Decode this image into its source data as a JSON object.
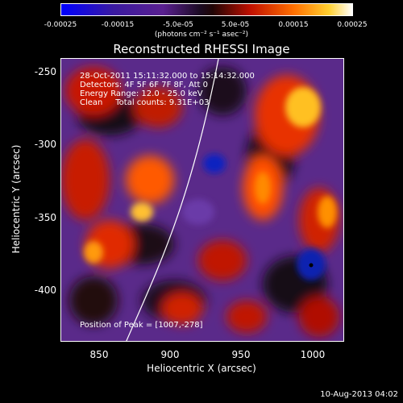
{
  "colorbar": {
    "ticks": [
      "-0.00025",
      "-0.00015",
      "-5.0e-05",
      "5.0e-05",
      "0.00015",
      "0.00025"
    ],
    "unit": "(photons cm⁻² s⁻¹ asec⁻²)"
  },
  "title": "Reconstructed RHESSI Image",
  "info": {
    "time": "28-Oct-2011 15:11:32.000 to 15:14:32.000",
    "detectors": "Detectors: 4F 5F 6F 7F 8F, Att 0",
    "energy": "Energy Range: 12.0 - 25.0 keV",
    "clean": "Clean     Total counts: 9.31E+03",
    "peak": "Position of Peak = [1007,-278]"
  },
  "axes": {
    "xlabel": "Heliocentric X (arcsec)",
    "ylabel": "Heliocentric Y (arcsec)",
    "xticks": [
      "850",
      "900",
      "950",
      "1000"
    ],
    "yticks": [
      "-250",
      "-300",
      "-350",
      "-400"
    ]
  },
  "footer": {
    "date": "10-Aug-2013 04:02"
  }
}
